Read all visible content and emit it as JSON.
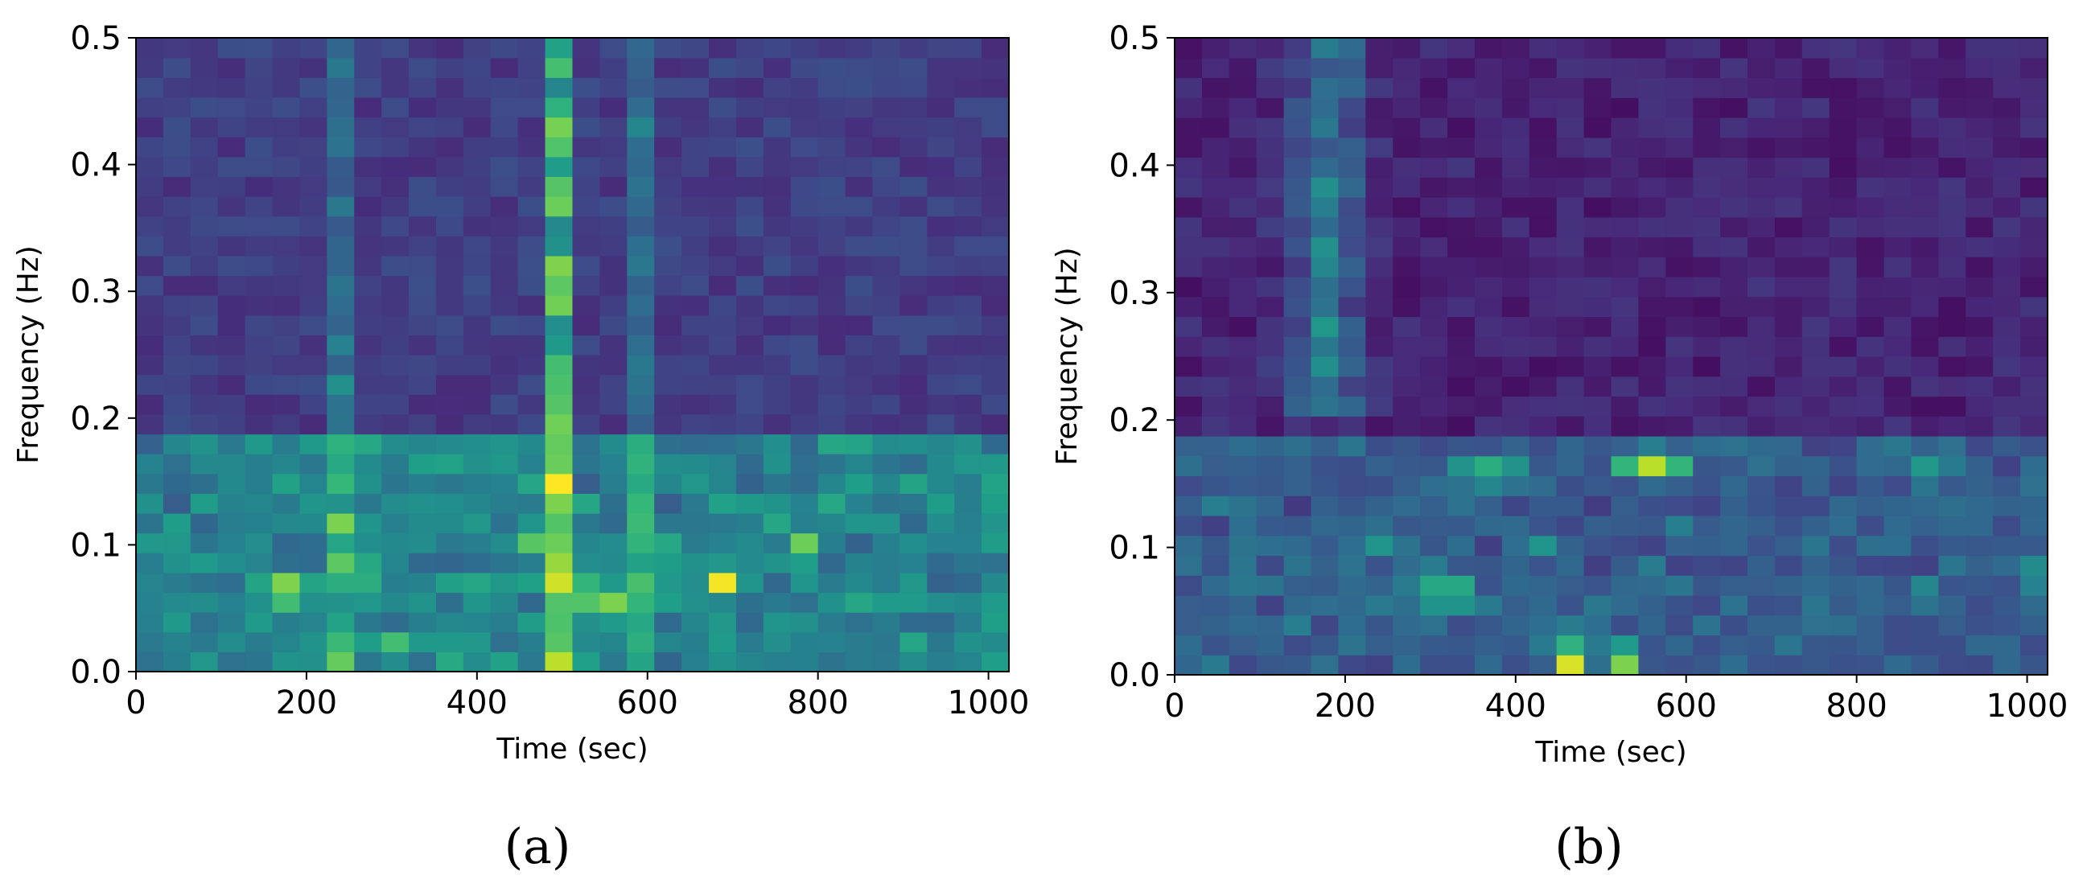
{
  "panels": [
    {
      "caption": "(a)"
    },
    {
      "caption": "(b)"
    }
  ],
  "chart_data": [
    {
      "type": "heatmap",
      "title": "",
      "xlabel": "Time (sec)",
      "ylabel": "Frequency (Hz)",
      "xlim": [
        0,
        1024
      ],
      "ylim": [
        0,
        0.5
      ],
      "xticks": [
        0,
        200,
        400,
        600,
        800,
        1000
      ],
      "xtick_labels": [
        "0",
        "200",
        "400",
        "600",
        "800",
        "1000"
      ],
      "yticks": [
        0.0,
        0.1,
        0.2,
        0.3,
        0.4,
        0.5
      ],
      "ytick_labels": [
        "0.0",
        "0.1",
        "0.2",
        "0.3",
        "0.4",
        "0.5"
      ],
      "colormap": "viridis",
      "grid": false,
      "n_time_bins": 32,
      "n_freq_bins": 32,
      "base_intensity": 0.12,
      "low_band": {
        "f_max": 0.18,
        "intensity": 0.3
      },
      "hotspots": [
        {
          "t": 176,
          "f": 0.065,
          "intensity": 0.85,
          "dt": 40,
          "df": 0.016
        },
        {
          "t": 256,
          "f": 0.07,
          "intensity": 0.72,
          "dt": 30,
          "df": 0.012
        },
        {
          "t": 304,
          "f": 0.025,
          "intensity": 0.7,
          "dt": 40,
          "df": 0.012
        },
        {
          "t": 272,
          "f": 0.16,
          "intensity": 0.5,
          "dt": 35,
          "df": 0.015
        },
        {
          "t": 464,
          "f": 0.105,
          "intensity": 0.78,
          "dt": 30,
          "df": 0.01
        },
        {
          "t": 528,
          "f": 0.06,
          "intensity": 0.75,
          "dt": 50,
          "df": 0.02
        },
        {
          "t": 560,
          "f": 0.055,
          "intensity": 0.8,
          "dt": 25,
          "df": 0.01
        },
        {
          "t": 688,
          "f": 0.072,
          "intensity": 1.0,
          "dt": 16,
          "df": 0.01
        },
        {
          "t": 784,
          "f": 0.1,
          "intensity": 0.78,
          "dt": 25,
          "df": 0.012
        },
        {
          "t": 1008,
          "f": 0.1,
          "intensity": 0.55,
          "dt": 25,
          "df": 0.012
        }
      ],
      "vertical_lines": [
        {
          "t": 496,
          "intensity": 0.5,
          "dt": 14
        },
        {
          "t": 240,
          "intensity": 0.22,
          "dt": 12
        },
        {
          "t": 592,
          "intensity": 0.2,
          "dt": 12
        }
      ],
      "seed": 11
    },
    {
      "type": "heatmap",
      "title": "",
      "xlabel": "Time (sec)",
      "ylabel": "Frequency (Hz)",
      "xlim": [
        0,
        1024
      ],
      "ylim": [
        0,
        0.5
      ],
      "xticks": [
        0,
        200,
        400,
        600,
        800,
        1000
      ],
      "xtick_labels": [
        "0",
        "200",
        "400",
        "600",
        "800",
        "1000"
      ],
      "yticks": [
        0.0,
        0.1,
        0.2,
        0.3,
        0.4,
        0.5
      ],
      "ytick_labels": [
        "0.0",
        "0.1",
        "0.2",
        "0.3",
        "0.4",
        "0.5"
      ],
      "colormap": "viridis",
      "grid": false,
      "n_time_bins": 32,
      "n_freq_bins": 32,
      "base_intensity": 0.04,
      "low_band": {
        "f_max": 0.19,
        "intensity": 0.22
      },
      "hotspots": [
        {
          "t": 560,
          "f": 0.165,
          "intensity": 0.9,
          "dt": 40,
          "df": 0.012
        },
        {
          "t": 368,
          "f": 0.16,
          "intensity": 0.65,
          "dt": 50,
          "df": 0.014
        },
        {
          "t": 464,
          "f": 0.012,
          "intensity": 1.0,
          "dt": 16,
          "df": 0.012
        },
        {
          "t": 528,
          "f": 0.012,
          "intensity": 0.85,
          "dt": 16,
          "df": 0.012
        },
        {
          "t": 320,
          "f": 0.065,
          "intensity": 0.7,
          "dt": 35,
          "df": 0.016
        },
        {
          "t": 464,
          "f": 0.03,
          "intensity": 0.55,
          "dt": 60,
          "df": 0.012
        },
        {
          "t": 240,
          "f": 0.105,
          "intensity": 0.55,
          "dt": 20,
          "df": 0.01
        },
        {
          "t": 432,
          "f": 0.105,
          "intensity": 0.55,
          "dt": 20,
          "df": 0.01
        },
        {
          "t": 880,
          "f": 0.16,
          "intensity": 0.55,
          "dt": 30,
          "df": 0.014
        },
        {
          "t": 880,
          "f": 0.065,
          "intensity": 0.5,
          "dt": 30,
          "df": 0.014
        },
        {
          "t": 1008,
          "f": 0.08,
          "intensity": 0.5,
          "dt": 30,
          "df": 0.02
        }
      ],
      "vertical_lines": [
        {
          "t": 176,
          "intensity": 0.35,
          "dt": 40,
          "f_min": 0.2
        }
      ],
      "seed": 29
    }
  ]
}
